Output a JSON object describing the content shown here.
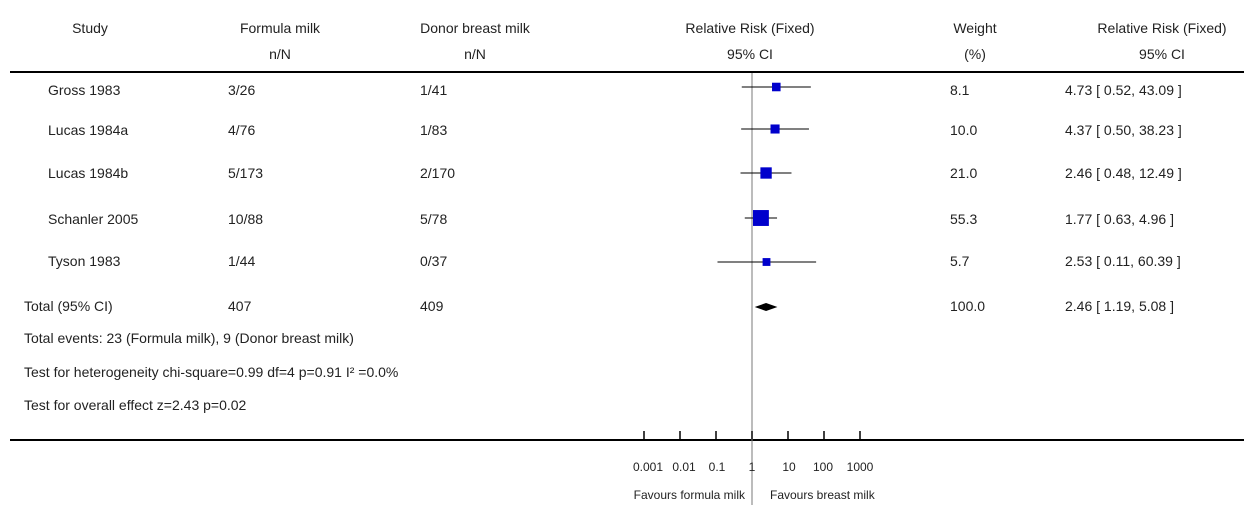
{
  "header": {
    "study": "Study",
    "formula": "Formula milk",
    "formula_sub": "n/N",
    "donor": "Donor breast milk",
    "donor_sub": "n/N",
    "rr_plot": "Relative Risk (Fixed)",
    "rr_plot_sub": "95% CI",
    "weight": "Weight",
    "weight_sub": "(%)",
    "rr_text": "Relative Risk (Fixed)",
    "rr_text_sub": "95% CI"
  },
  "rows": [
    {
      "study": "Gross 1983",
      "formula": "3/26",
      "donor": "1/41",
      "weight": "8.1",
      "ci_text": "4.73 [ 0.52, 43.09 ]"
    },
    {
      "study": "Lucas 1984a",
      "formula": "4/76",
      "donor": "1/83",
      "weight": "10.0",
      "ci_text": "4.37 [ 0.50, 38.23 ]"
    },
    {
      "study": "Lucas 1984b",
      "formula": "5/173",
      "donor": "2/170",
      "weight": "21.0",
      "ci_text": "2.46 [ 0.48, 12.49 ]"
    },
    {
      "study": "Schanler 2005",
      "formula": "10/88",
      "donor": "5/78",
      "weight": "55.3",
      "ci_text": "1.77 [ 0.63, 4.96 ]"
    },
    {
      "study": "Tyson 1983",
      "formula": "1/44",
      "donor": "0/37",
      "weight": "5.7",
      "ci_text": "2.53 [ 0.11, 60.39 ]"
    }
  ],
  "total": {
    "study": "Total (95% CI)",
    "formula": "407",
    "donor": "409",
    "weight": "100.0",
    "ci_text": "2.46 [ 1.19, 5.08 ]"
  },
  "notes": {
    "events": "Total events: 23 (Formula milk), 9 (Donor breast milk)",
    "heterogeneity": "Test for heterogeneity chi-square=0.99 df=4 p=0.91 I² =0.0%",
    "overall": "Test for overall effect z=2.43    p=0.02"
  },
  "axis": {
    "tick_labels": [
      "0.001",
      "0.01",
      "0.1",
      "1",
      "10",
      "100",
      "1000"
    ],
    "favours_left": "Favours formula milk",
    "favours_right": "Favours breast milk"
  },
  "colors": {
    "marker": "#0000cc",
    "diamond": "#000000",
    "line": "#000000"
  },
  "chart_data": {
    "type": "scatter",
    "x_scale": "log",
    "xlim": [
      0.001,
      1000
    ],
    "ticks": [
      0.001,
      0.01,
      0.1,
      1,
      10,
      100,
      1000
    ],
    "reference_line": 1,
    "studies": [
      {
        "name": "Gross 1983",
        "rr": 4.73,
        "ci_low": 0.52,
        "ci_high": 43.09,
        "weight": 8.1
      },
      {
        "name": "Lucas 1984a",
        "rr": 4.37,
        "ci_low": 0.5,
        "ci_high": 38.23,
        "weight": 10.0
      },
      {
        "name": "Lucas 1984b",
        "rr": 2.46,
        "ci_low": 0.48,
        "ci_high": 12.49,
        "weight": 21.0
      },
      {
        "name": "Schanler 2005",
        "rr": 1.77,
        "ci_low": 0.63,
        "ci_high": 4.96,
        "weight": 55.3
      },
      {
        "name": "Tyson 1983",
        "rr": 2.53,
        "ci_low": 0.11,
        "ci_high": 60.39,
        "weight": 5.7
      }
    ],
    "pooled": {
      "rr": 2.46,
      "ci_low": 1.19,
      "ci_high": 5.08
    }
  }
}
